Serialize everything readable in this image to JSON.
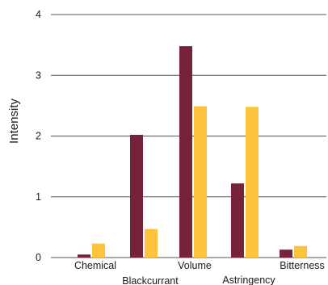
{
  "chart_data": {
    "type": "bar",
    "ylabel": "Intensity",
    "xlabel": "",
    "ylim": [
      0,
      4
    ],
    "yticks": [
      0,
      1,
      2,
      3,
      4
    ],
    "grid": true,
    "legend": "none",
    "categories": [
      "Chemical",
      "Blackcurrant",
      "Volume",
      "Astringency",
      "Bitterness"
    ],
    "series": [
      {
        "color": "#76223a",
        "values": [
          0.05,
          2.02,
          3.48,
          1.22,
          0.13
        ]
      },
      {
        "color": "#fcc43c",
        "values": [
          0.23,
          0.47,
          2.49,
          2.48,
          0.19
        ]
      }
    ]
  }
}
